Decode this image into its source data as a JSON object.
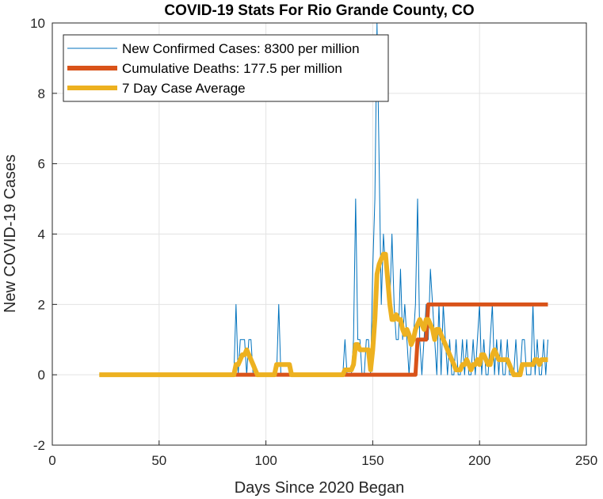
{
  "chart_data": {
    "type": "line",
    "title": "COVID-19 Stats For Rio Grande County, CO",
    "xlabel": "Days Since 2020 Began",
    "ylabel": "New COVID-19 Cases",
    "xlim": [
      0,
      250
    ],
    "ylim": [
      -2,
      10
    ],
    "xticks": [
      "0",
      "50",
      "100",
      "150",
      "200",
      "250"
    ],
    "yticks": [
      "-2",
      "0",
      "2",
      "4",
      "6",
      "8",
      "10"
    ],
    "grid": true,
    "legend_position": "top-left",
    "series": [
      {
        "name": "New Confirmed Cases: 8300 per million",
        "color": "#0072BD",
        "x": [
          22,
          85,
          86,
          87,
          88,
          89,
          90,
          91,
          92,
          93,
          94,
          105,
          106,
          107,
          136,
          137,
          138,
          140,
          141,
          142,
          143,
          144,
          145,
          146,
          147,
          148,
          149,
          150,
          151,
          152,
          153,
          154,
          155,
          156,
          157,
          158,
          159,
          160,
          161,
          162,
          163,
          164,
          165,
          166,
          167,
          168,
          169,
          170,
          171,
          172,
          173,
          174,
          175,
          176,
          177,
          178,
          179,
          180,
          181,
          182,
          183,
          184,
          185,
          186,
          187,
          188,
          189,
          190,
          191,
          192,
          193,
          194,
          195,
          196,
          197,
          198,
          199,
          200,
          201,
          202,
          203,
          204,
          205,
          206,
          207,
          208,
          209,
          210,
          211,
          212,
          213,
          214,
          215,
          216,
          217,
          218,
          219,
          220,
          221,
          222,
          223,
          224,
          225,
          226,
          227,
          228,
          229,
          230,
          231,
          232
        ],
        "values": [
          0,
          0,
          2,
          0,
          1,
          1,
          1,
          0,
          1,
          1,
          0,
          0,
          2,
          0,
          0,
          1,
          0,
          0,
          1,
          5,
          1,
          1,
          0,
          0,
          1,
          1,
          0,
          3,
          5,
          10,
          6,
          2,
          4,
          3,
          3,
          2,
          4,
          2,
          1,
          1,
          3,
          1,
          2,
          1,
          0,
          1,
          1,
          2,
          5,
          1,
          0,
          1,
          2,
          1,
          3,
          2,
          1,
          0,
          2,
          0,
          2,
          1,
          0,
          1,
          0,
          0,
          1,
          0,
          0,
          1,
          0,
          1,
          0,
          0,
          1,
          0,
          1,
          2,
          0,
          1,
          0,
          0,
          1,
          2,
          0,
          1,
          0,
          1,
          0,
          0,
          1,
          0,
          0,
          0,
          1,
          0,
          0,
          1,
          1,
          0,
          0,
          0,
          2,
          0,
          1,
          0,
          0,
          1,
          0,
          1
        ]
      },
      {
        "name": "Cumulative Deaths: 177.5 per million",
        "color": "#D95319",
        "x": [
          85,
          86,
          87,
          88,
          89,
          90,
          91,
          92,
          93,
          94,
          95,
          105,
          106,
          107,
          108,
          109,
          110,
          136,
          137,
          138,
          139,
          140,
          150,
          160,
          170,
          171,
          172,
          173,
          174,
          175,
          176,
          177,
          178,
          180,
          190,
          200,
          210,
          220,
          225,
          230,
          232
        ],
        "values": [
          0,
          0,
          0,
          0,
          0,
          0,
          0,
          0,
          0,
          0,
          0,
          0,
          0,
          0,
          0,
          0,
          0,
          0,
          0,
          0,
          0,
          0,
          0,
          0,
          0,
          1,
          1,
          1,
          1,
          1,
          2,
          2,
          2,
          2,
          2,
          2,
          2,
          2,
          2,
          2,
          2
        ]
      },
      {
        "name": "7 Day Case Average",
        "color": "#EDB120",
        "x": [
          22,
          85,
          86,
          87,
          88,
          89,
          90,
          91,
          92,
          93,
          94,
          95,
          96,
          104,
          105,
          106,
          107,
          108,
          109,
          110,
          111,
          112,
          136,
          137,
          138,
          139,
          140,
          141,
          142,
          143,
          144,
          145,
          146,
          147,
          148,
          149,
          150,
          151,
          152,
          153,
          154,
          155,
          156,
          157,
          158,
          159,
          160,
          161,
          162,
          163,
          164,
          165,
          166,
          167,
          168,
          169,
          170,
          171,
          172,
          173,
          174,
          175,
          176,
          177,
          178,
          179,
          180,
          181,
          182,
          183,
          184,
          185,
          186,
          187,
          188,
          189,
          190,
          191,
          192,
          193,
          194,
          195,
          196,
          197,
          198,
          199,
          200,
          201,
          202,
          203,
          204,
          205,
          206,
          207,
          208,
          209,
          210,
          211,
          212,
          213,
          214,
          215,
          216,
          217,
          218,
          219,
          220,
          221,
          222,
          223,
          224,
          225,
          226,
          227,
          228,
          229,
          230,
          231,
          232
        ],
        "values": [
          0,
          0,
          0.29,
          0.29,
          0.43,
          0.57,
          0.57,
          0.71,
          0.57,
          0.43,
          0.29,
          0.14,
          0,
          0,
          0.29,
          0.29,
          0.29,
          0.29,
          0.29,
          0.29,
          0.29,
          0,
          0,
          0.14,
          0.14,
          0.14,
          0.14,
          0.29,
          0.86,
          0.86,
          0.71,
          0.71,
          0.71,
          0.71,
          0.71,
          0.14,
          0.71,
          1.57,
          2.86,
          3.14,
          3.29,
          3.43,
          3.43,
          2.71,
          2.0,
          1.57,
          1.57,
          1.71,
          1.57,
          1.57,
          1.29,
          1.14,
          1.29,
          1.14,
          0.86,
          1.0,
          1.29,
          1.43,
          1.57,
          1.43,
          1.29,
          1.57,
          1.57,
          1.43,
          1.29,
          1.0,
          1.29,
          1.29,
          1.14,
          1.0,
          0.86,
          0.71,
          0.57,
          0.43,
          0.29,
          0.14,
          0.14,
          0.14,
          0.29,
          0.29,
          0.43,
          0.29,
          0.14,
          0.29,
          0.29,
          0.43,
          0.29,
          0.57,
          0.57,
          0.43,
          0.29,
          0.29,
          0.57,
          0.71,
          0.57,
          0.43,
          0.43,
          0.43,
          0.43,
          0.43,
          0.29,
          0.14,
          0,
          0,
          0,
          0,
          0.29,
          0.29,
          0.29,
          0.29,
          0.29,
          0.29,
          0.43,
          0.43,
          0.29,
          0.43,
          0.43,
          0.43,
          0.43
        ]
      }
    ]
  }
}
